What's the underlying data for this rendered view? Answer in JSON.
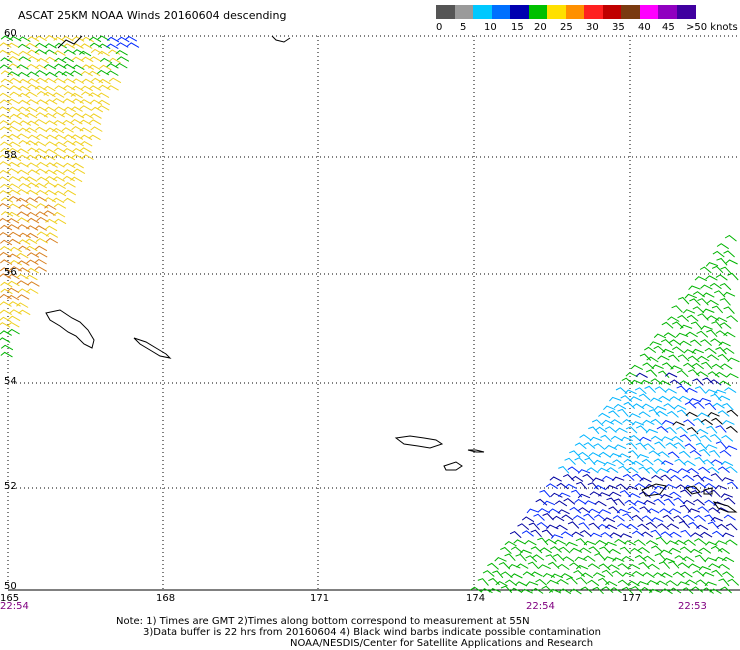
{
  "title": "ASCAT 25KM NOAA Winds 20160604 descending",
  "legend": {
    "labels": [
      "0",
      "5",
      "10",
      "15",
      "20",
      "25",
      "30",
      "35",
      "40",
      "45",
      ">50 knots"
    ],
    "colors": [
      "#555555",
      "#9a9a9a",
      "#00c8ff",
      "#0070ff",
      "#0000b0",
      "#00c000",
      "#ffe000",
      "#ff9000",
      "#ff2020",
      "#c00000",
      "#7a3a10",
      "#ff00ff",
      "#9000c0",
      "#4000a0"
    ]
  },
  "axes": {
    "lat_labels": [
      "60",
      "58",
      "56",
      "54",
      "52",
      "50"
    ],
    "lon_labels": [
      "165",
      "168",
      "171",
      "174",
      "177"
    ]
  },
  "pass_times": [
    "22:54",
    "22:54",
    "22:53"
  ],
  "notes": [
    "Note: 1) Times are GMT 2)Times along bottom correspond to measurement at 55N",
    "3)Data buffer is 22 hrs from 20160604 4) Black wind barbs indicate possible contamination",
    "NOAA/NESDIS/Center for Satellite Applications and Research"
  ],
  "barb_colors": {
    "green": "#00b400",
    "yellow": "#f0d020",
    "orange": "#d88020",
    "cyan": "#00b4ff",
    "blue": "#0028ff",
    "darkblue": "#0000a0",
    "black": "#000000"
  }
}
